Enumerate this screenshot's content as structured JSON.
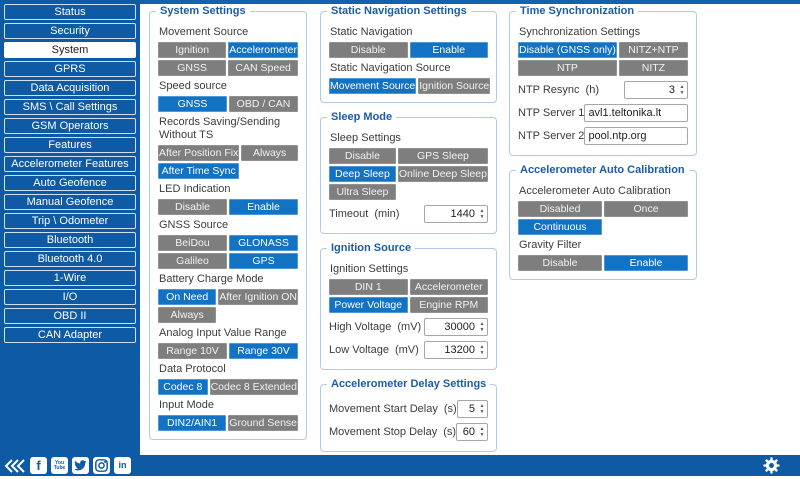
{
  "theme": {
    "sidebar_blue": "#0f5aa4",
    "accent_blue": "#1273c4",
    "inactive_gray": "#7e7e7e",
    "panel_border": "#aecbe8",
    "title_blue": "#1b5ca9"
  },
  "icons": {
    "stepper_up": "▲",
    "stepper_down": "▼"
  },
  "sidebar": {
    "items": [
      {
        "label": "Status",
        "selected": false
      },
      {
        "label": "Security",
        "selected": false
      },
      {
        "label": "System",
        "selected": true
      },
      {
        "label": "GPRS",
        "selected": false
      },
      {
        "label": "Data Acquisition",
        "selected": false
      },
      {
        "label": "SMS \\ Call Settings",
        "selected": false
      },
      {
        "label": "GSM Operators",
        "selected": false
      },
      {
        "label": "Features",
        "selected": false
      },
      {
        "label": "Accelerometer Features",
        "selected": false
      },
      {
        "label": "Auto Geofence",
        "selected": false
      },
      {
        "label": "Manual Geofence",
        "selected": false
      },
      {
        "label": "Trip \\ Odometer",
        "selected": false
      },
      {
        "label": "Bluetooth",
        "selected": false
      },
      {
        "label": "Bluetooth 4.0",
        "selected": false
      },
      {
        "label": "1-Wire",
        "selected": false
      },
      {
        "label": "I/O",
        "selected": false
      },
      {
        "label": "OBD II",
        "selected": false
      },
      {
        "label": "CAN Adapter",
        "selected": false
      }
    ]
  },
  "footer": {
    "social_icons": [
      "collapse-icon",
      "facebook-icon",
      "youtube-icon",
      "twitter-icon",
      "instagram-icon",
      "linkedin-icon"
    ],
    "facebook_glyph": "f",
    "youtube_line1": "You",
    "youtube_line2": "Tube",
    "linkedin_glyph": "in"
  },
  "columns": [
    {
      "panels": [
        {
          "title": "System Settings",
          "fields": [
            {
              "type": "buttons",
              "label": "Movement Source",
              "options": [
                {
                  "label": "Ignition",
                  "selected": false
                },
                {
                  "label": "Accelerometer",
                  "selected": true
                },
                {
                  "label": "GNSS",
                  "selected": false
                },
                {
                  "label": "CAN Speed",
                  "selected": false
                }
              ]
            },
            {
              "type": "buttons",
              "label": "Speed source",
              "options": [
                {
                  "label": "GNSS",
                  "selected": true
                },
                {
                  "label": "OBD / CAN",
                  "selected": false
                }
              ]
            },
            {
              "type": "buttons",
              "label": "Records Saving/Sending Without TS",
              "options": [
                {
                  "label": "After Position Fix",
                  "selected": false
                },
                {
                  "label": "Always",
                  "selected": false
                },
                {
                  "label": "After Time Sync",
                  "selected": true
                }
              ]
            },
            {
              "type": "buttons",
              "label": "LED Indication",
              "options": [
                {
                  "label": "Disable",
                  "selected": false
                },
                {
                  "label": "Enable",
                  "selected": true
                }
              ]
            },
            {
              "type": "buttons",
              "label": "GNSS Source",
              "options": [
                {
                  "label": "BeiDou",
                  "selected": false
                },
                {
                  "label": "GLONASS",
                  "selected": true
                },
                {
                  "label": "Galileo",
                  "selected": false
                },
                {
                  "label": "GPS",
                  "selected": true
                }
              ]
            },
            {
              "type": "buttons",
              "label": "Battery Charge Mode",
              "options": [
                {
                  "label": "On Need",
                  "selected": true
                },
                {
                  "label": "After Ignition ON",
                  "selected": false
                },
                {
                  "label": "Always",
                  "selected": false
                }
              ]
            },
            {
              "type": "buttons",
              "label": "Analog Input Value Range",
              "options": [
                {
                  "label": "Range 10V",
                  "selected": false
                },
                {
                  "label": "Range 30V",
                  "selected": true
                }
              ]
            },
            {
              "type": "buttons",
              "label": "Data Protocol",
              "options": [
                {
                  "label": "Codec 8",
                  "selected": true
                },
                {
                  "label": "Codec 8 Extended",
                  "selected": false
                }
              ]
            },
            {
              "type": "buttons",
              "label": "Input Mode",
              "options": [
                {
                  "label": "DIN2/AIN1",
                  "selected": true
                },
                {
                  "label": "Ground Sense",
                  "selected": false
                }
              ]
            }
          ]
        }
      ]
    },
    {
      "panels": [
        {
          "title": "Static Navigation Settings",
          "fields": [
            {
              "type": "buttons",
              "label": "Static Navigation",
              "options": [
                {
                  "label": "Disable",
                  "selected": false
                },
                {
                  "label": "Enable",
                  "selected": true
                }
              ]
            },
            {
              "type": "buttons",
              "label": "Static Navigation Source",
              "options": [
                {
                  "label": "Movement Source",
                  "selected": true
                },
                {
                  "label": "Ignition Source",
                  "selected": false
                }
              ]
            }
          ]
        },
        {
          "title": "Sleep Mode",
          "fields": [
            {
              "type": "buttons",
              "label": "Sleep Settings",
              "options": [
                {
                  "label": "Disable",
                  "selected": false
                },
                {
                  "label": "GPS Sleep",
                  "selected": false
                },
                {
                  "label": "Deep Sleep",
                  "selected": true
                },
                {
                  "label": "Online Deep Sleep",
                  "selected": false
                },
                {
                  "label": "Ultra Sleep",
                  "selected": false
                }
              ]
            },
            {
              "type": "number",
              "label": "Timeout",
              "unit": "(min)",
              "value": "1440"
            }
          ]
        },
        {
          "title": "Ignition Source",
          "fields": [
            {
              "type": "buttons",
              "label": "Ignition Settings",
              "options": [
                {
                  "label": "DIN 1",
                  "selected": false
                },
                {
                  "label": "Accelerometer",
                  "selected": false
                },
                {
                  "label": "Power Voltage",
                  "selected": true
                },
                {
                  "label": "Engine RPM",
                  "selected": false
                }
              ]
            },
            {
              "type": "number",
              "label": "High Voltage",
              "unit": "(mV)",
              "value": "30000"
            },
            {
              "type": "number",
              "label": "Low Voltage",
              "unit": "(mV)",
              "value": "13200"
            }
          ]
        },
        {
          "title": "Accelerometer Delay Settings",
          "fields": [
            {
              "type": "number",
              "label": "Movement Start Delay",
              "unit": "(s)",
              "value": "5"
            },
            {
              "type": "number",
              "label": "Movement Stop Delay",
              "unit": "(s)",
              "value": "60"
            }
          ]
        }
      ]
    },
    {
      "panels": [
        {
          "title": "Time Synchronization",
          "fields": [
            {
              "type": "buttons",
              "label": "Synchronization Settings",
              "options": [
                {
                  "label": "Disable (GNSS only)",
                  "selected": true
                },
                {
                  "label": "NITZ+NTP",
                  "selected": false
                },
                {
                  "label": "NTP",
                  "selected": false
                },
                {
                  "label": "NITZ",
                  "selected": false
                }
              ]
            },
            {
              "type": "number",
              "label": "NTP Resync",
              "unit": "(h)",
              "value": "3"
            },
            {
              "type": "text",
              "label": "NTP Server 1",
              "value": "avl1.teltonika.lt"
            },
            {
              "type": "text",
              "label": "NTP Server 2",
              "value": "pool.ntp.org"
            }
          ]
        },
        {
          "title": "Accelerometer Auto Calibration",
          "fields": [
            {
              "type": "buttons",
              "label": "Accelerometer Auto Calibration",
              "options": [
                {
                  "label": "Disabled",
                  "selected": false
                },
                {
                  "label": "Once",
                  "selected": false
                },
                {
                  "label": "Continuous",
                  "selected": true
                }
              ]
            },
            {
              "type": "buttons",
              "label": "Gravity Filter",
              "options": [
                {
                  "label": "Disable",
                  "selected": false
                },
                {
                  "label": "Enable",
                  "selected": true
                }
              ]
            }
          ]
        }
      ]
    }
  ]
}
